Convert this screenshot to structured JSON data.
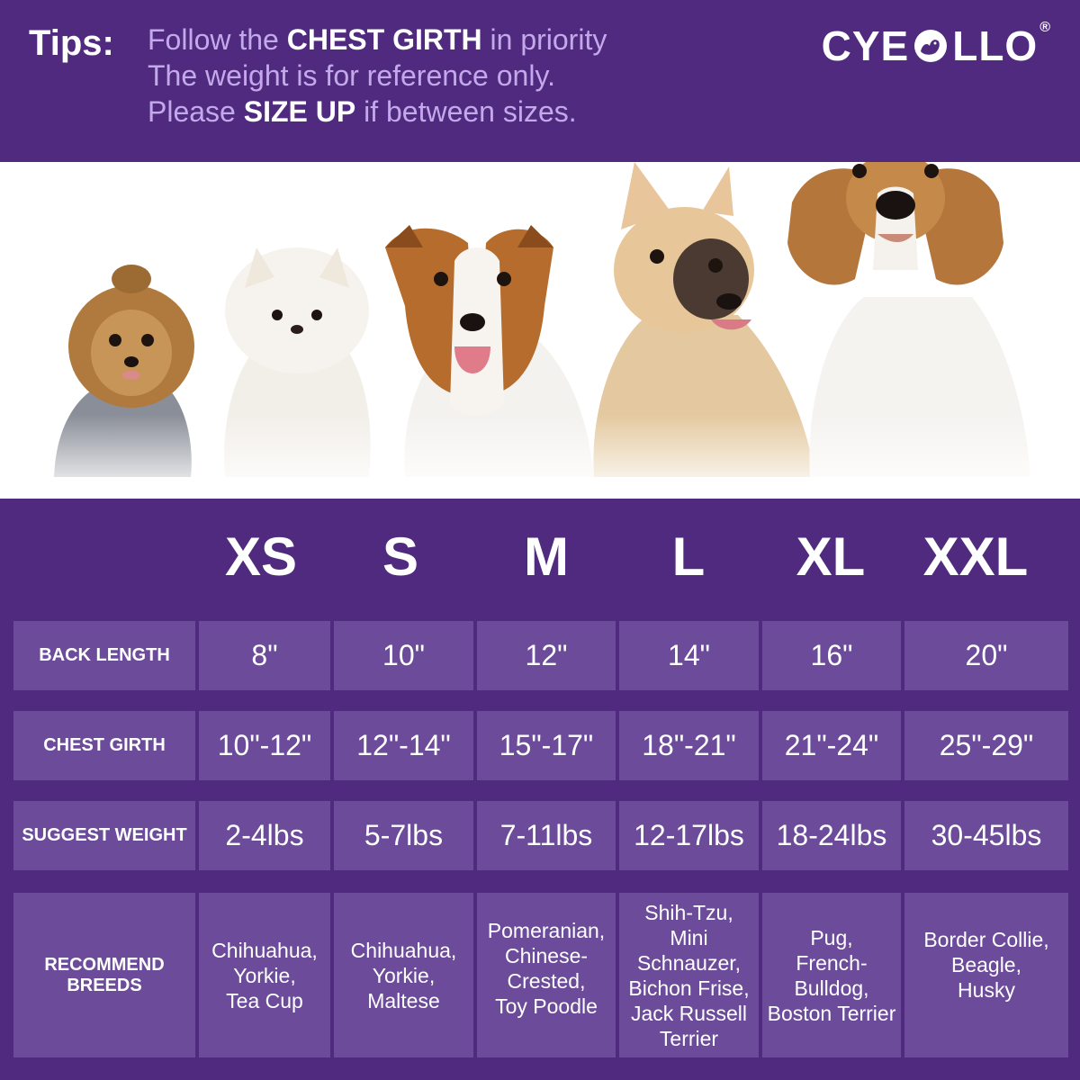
{
  "header": {
    "tips_label": "Tips:",
    "line1": {
      "pre": "Follow the ",
      "bold": "CHEST GIRTH",
      "post": " in priority"
    },
    "line2": "The weight is for reference only.",
    "line3": {
      "pre": "Please ",
      "bold": "SIZE UP",
      "post": " if between sizes."
    },
    "logo": {
      "left": "CYE",
      "right": "LLO",
      "reg": "®"
    }
  },
  "photo": {
    "dogs": [
      "yorkie-photo",
      "pomeranian-photo",
      "jack-russell-photo",
      "french-bulldog-photo",
      "beagle-photo"
    ]
  },
  "table": {
    "sizes": [
      "XS",
      "S",
      "M",
      "L",
      "XL",
      "XXL"
    ],
    "rows": [
      {
        "label": "BACK  LENGTH",
        "values": [
          "8\"",
          "10\"",
          "12\"",
          "14\"",
          "16\"",
          "20\""
        ]
      },
      {
        "label": "CHEST GIRTH",
        "values": [
          "10\"-12\"",
          "12\"-14\"",
          "15\"-17\"",
          "18\"-21\"",
          "21\"-24\"",
          "25\"-29\""
        ]
      },
      {
        "label": "SUGGEST WEIGHT",
        "values": [
          "2-4lbs",
          "5-7lbs",
          "7-11lbs",
          "12-17lbs",
          "18-24lbs",
          "30-45lbs"
        ]
      }
    ],
    "breeds": {
      "label": [
        "RECOMMEND",
        "BREEDS"
      ],
      "values": [
        [
          "Chihuahua,",
          "Yorkie,",
          "Tea Cup"
        ],
        [
          "Chihuahua,",
          "Yorkie,",
          "Maltese"
        ],
        [
          "Pomeranian,",
          "Chinese-",
          "Crested,",
          "Toy Poodle"
        ],
        [
          "Shih-Tzu,",
          "Mini Schnauzer,",
          "Bichon Frise,",
          "Jack Russell",
          "Terrier"
        ],
        [
          "Pug,",
          "French-",
          "Bulldog,",
          "Boston Terrier"
        ],
        [
          "Border Collie,",
          "Beagle,",
          "Husky"
        ]
      ]
    }
  },
  "colors": {
    "purple_dark": "#4f2a7e",
    "cell_purple": "#6b4b9a",
    "tips_lilac": "#c3a9ec",
    "white": "#ffffff"
  }
}
